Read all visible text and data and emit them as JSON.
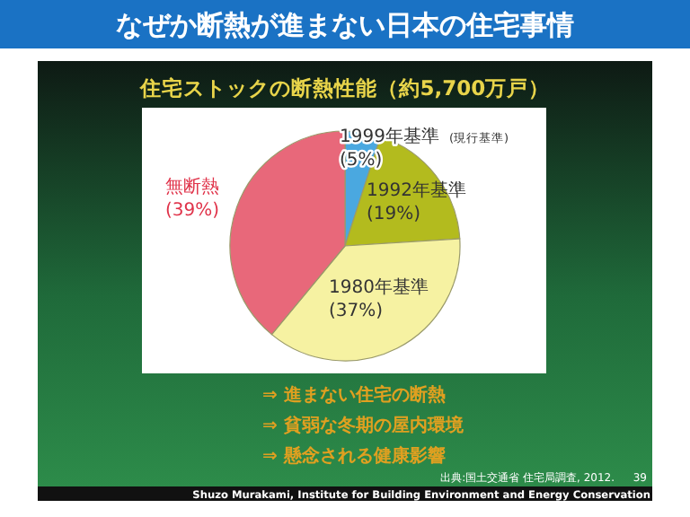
{
  "chart_data": {
    "type": "pie",
    "title": "なぜか断熱が進まない日本の住宅事情",
    "subtitle": "住宅ストックの断熱性能（約5,700万戸）",
    "categories": [
      "1999年基準",
      "1992年基準",
      "1980年基準",
      "無断熱"
    ],
    "values": [
      5,
      19,
      37,
      39
    ],
    "colors": [
      "#4aa8e0",
      "#b3bb1e",
      "#f6f2a2",
      "#e8687a"
    ],
    "value_labels": [
      "(5%)",
      "(19%)",
      "(37%)",
      "(39%)"
    ],
    "annotations": [
      "(現行基準)",
      "⇒ 進まない住宅の断熱",
      "⇒ 貧弱な冬期の屋内環境",
      "⇒ 懸念される健康影響",
      "出典:国土交通省 住宅局調査, 2012.",
      "39",
      "Shuzo Murakami, Institute for Building Environment and Energy Conservation"
    ]
  }
}
